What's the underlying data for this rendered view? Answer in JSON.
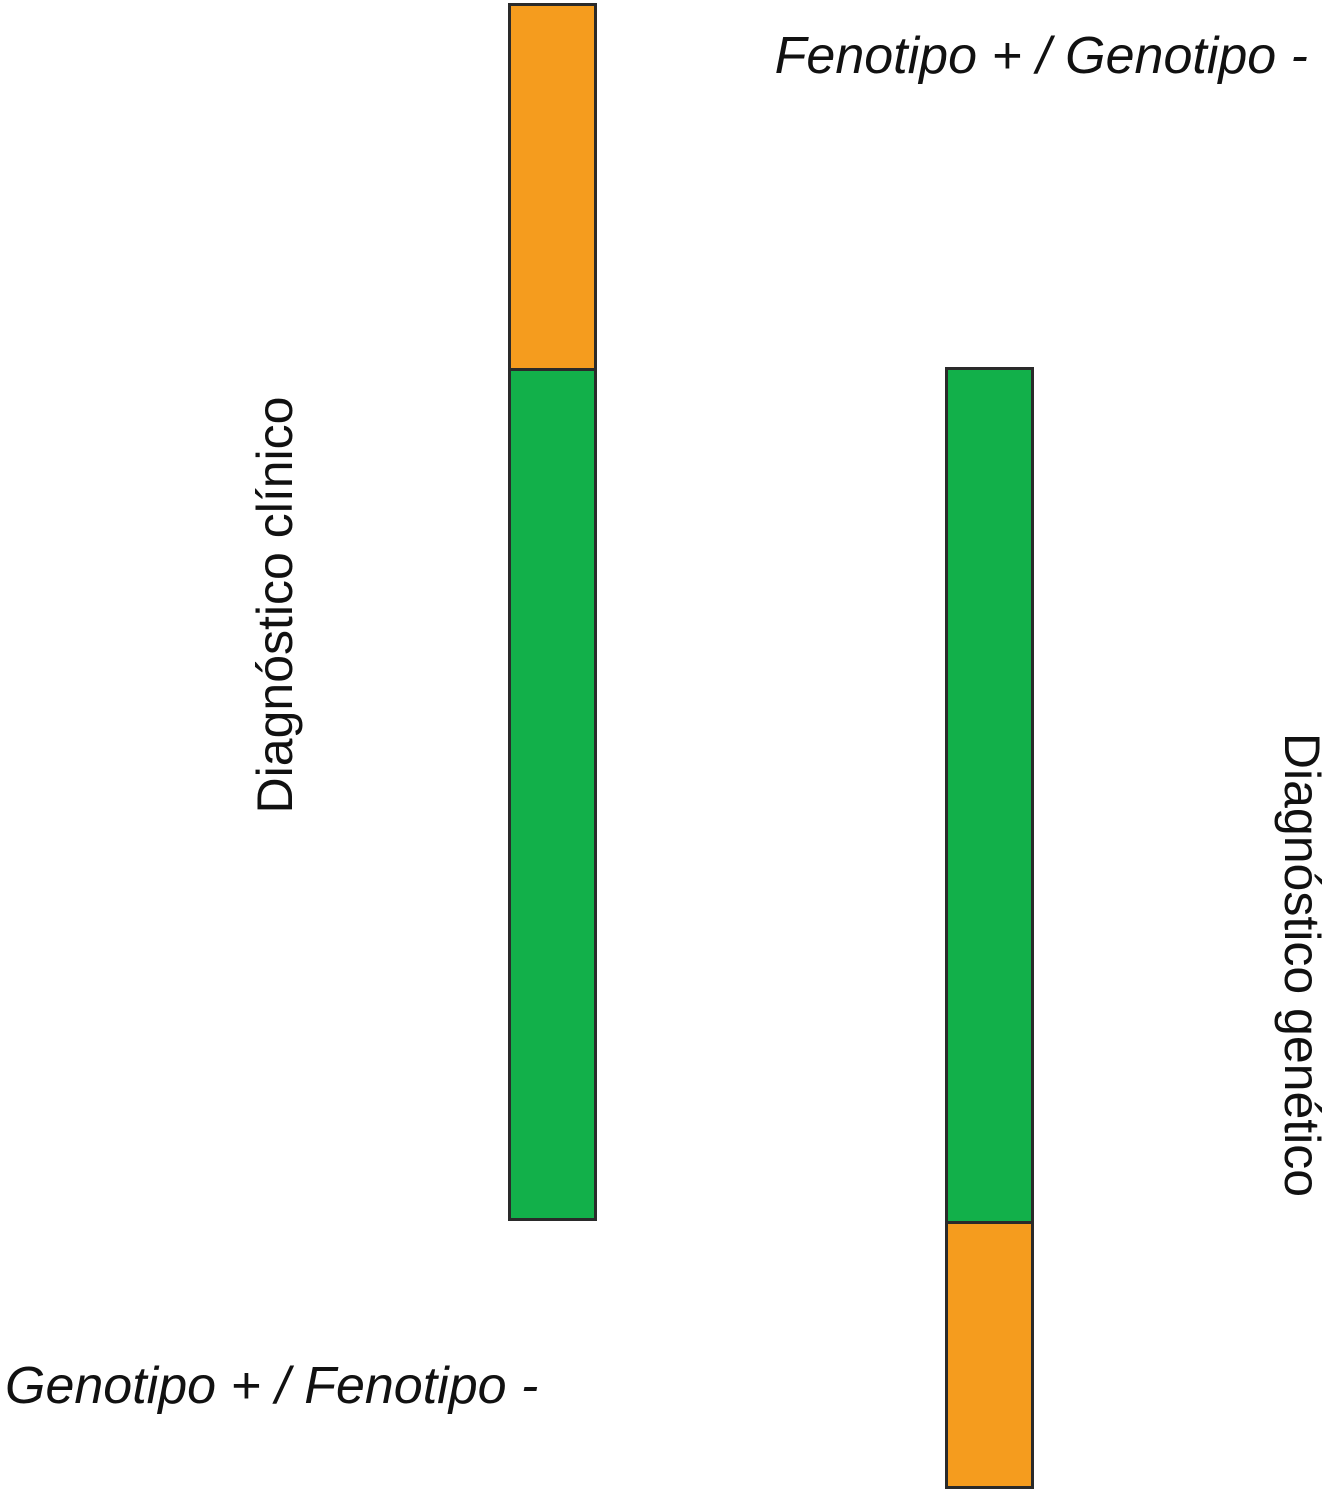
{
  "labels": {
    "clinical": "Diagnóstico clínico",
    "genetic": "Diagnóstico genético",
    "phenotype_pos_genotype_neg": "Fenotipo + / Genotipo -",
    "genotype_pos_phenotype_neg": "Genotipo + / Fenotipo  -"
  },
  "colors": {
    "orange": "#F59C1E",
    "green": "#12B04A",
    "outline": "#2A2A2A"
  }
}
